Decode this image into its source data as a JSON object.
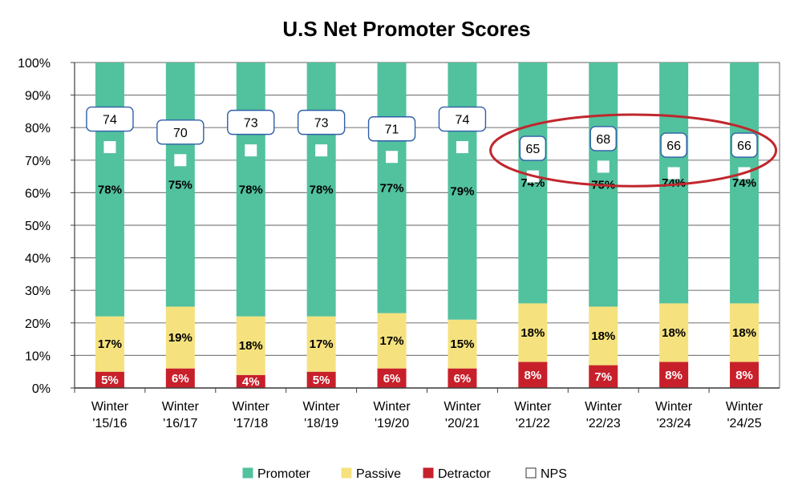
{
  "chart_data": {
    "type": "bar",
    "title": "U.S Net Promoter Scores",
    "categories": [
      [
        "Winter",
        "'15/16"
      ],
      [
        "Winter",
        "'16/17"
      ],
      [
        "Winter",
        "'17/18"
      ],
      [
        "Winter",
        "'18/19"
      ],
      [
        "Winter",
        "'19/20"
      ],
      [
        "Winter",
        "'20/21"
      ],
      [
        "Winter",
        "'21/22"
      ],
      [
        "Winter",
        "'22/23"
      ],
      [
        "Winter",
        "'23/24"
      ],
      [
        "Winter",
        "'24/25"
      ]
    ],
    "stacked": true,
    "ylim": [
      0,
      100
    ],
    "yticks": [
      "0%",
      "10%",
      "20%",
      "30%",
      "40%",
      "50%",
      "60%",
      "70%",
      "80%",
      "90%",
      "100%"
    ],
    "grid": true,
    "legend_position": "bottom",
    "series": [
      {
        "name": "Detractor",
        "color": "#C8202B",
        "values": [
          5,
          6,
          4,
          5,
          6,
          6,
          8,
          7,
          8,
          8
        ],
        "labels": [
          "5%",
          "6%",
          "4%",
          "5%",
          "6%",
          "6%",
          "8%",
          "7%",
          "8%",
          "8%"
        ]
      },
      {
        "name": "Passive",
        "color": "#F5E27E",
        "values": [
          17,
          19,
          18,
          17,
          17,
          15,
          18,
          18,
          18,
          18
        ],
        "labels": [
          "17%",
          "19%",
          "18%",
          "17%",
          "17%",
          "15%",
          "18%",
          "18%",
          "18%",
          "18%"
        ]
      },
      {
        "name": "Promoter",
        "color": "#52C19E",
        "values": [
          78,
          75,
          78,
          78,
          77,
          79,
          74,
          75,
          74,
          74
        ],
        "labels": [
          "78%",
          "75%",
          "78%",
          "78%",
          "77%",
          "79%",
          "74%",
          "75%",
          "74%",
          "74%"
        ]
      }
    ],
    "nps": {
      "name": "NPS",
      "values": [
        74,
        70,
        73,
        73,
        71,
        74,
        65,
        68,
        66,
        66
      ],
      "labels": [
        "74",
        "70",
        "73",
        "73",
        "71",
        "74",
        "65",
        "68",
        "66",
        "66"
      ]
    },
    "legend": [
      "Promoter",
      "Passive",
      "Detractor",
      "NPS"
    ],
    "highlight": {
      "from_index": 6,
      "to_index": 9,
      "color": "#C0272D"
    }
  }
}
